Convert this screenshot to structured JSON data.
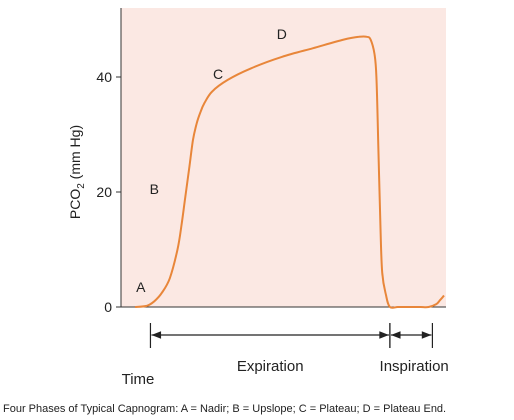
{
  "chart_data": {
    "type": "line",
    "title": "",
    "xlabel": "Time",
    "ylabel_text": "PCO",
    "ylabel_sub": "2",
    "ylabel_unit": " (mm Hg)",
    "ylim": [
      0,
      52
    ],
    "yticks": [
      0,
      20,
      40
    ],
    "grid": false,
    "colors": {
      "plot_background": "#fbe8e3",
      "line": "#e8863a",
      "axes": "#333333"
    },
    "series": [
      {
        "x": [
          0,
          3,
          5,
          7,
          9,
          11,
          12,
          13,
          14,
          15,
          16,
          17,
          18,
          20,
          24,
          30,
          38,
          46,
          54,
          58,
          60,
          61,
          62,
          62.5,
          63,
          63.5,
          64,
          65,
          66,
          68,
          70,
          72,
          74,
          76,
          78,
          79,
          80
        ],
        "y": [
          0,
          0.2,
          1,
          2.5,
          5,
          10,
          14,
          19,
          24,
          29,
          32,
          34,
          35.5,
          37.5,
          39.5,
          41.5,
          43.5,
          45,
          46.5,
          47,
          47,
          46.5,
          44,
          40,
          28,
          15,
          6,
          2,
          0,
          0,
          0,
          0,
          0,
          0,
          0.5,
          1.2,
          2
        ]
      }
    ],
    "annotations": [
      {
        "label": "A",
        "x": 1.5,
        "y": 3.5
      },
      {
        "label": "B",
        "x": 5,
        "y": 20.5
      },
      {
        "label": "C",
        "x": 21.5,
        "y": 40.5
      },
      {
        "label": "D",
        "x": 38,
        "y": 47.5
      }
    ],
    "phases": [
      {
        "label": "Expiration",
        "x_start": 4,
        "x_end": 66
      },
      {
        "label": "Inspiration",
        "x_start": 66,
        "x_end": 77
      }
    ]
  },
  "caption": "Four Phases of Typical Capnogram: A = Nadir; B = Upslope; C = Plateau; D = Plateau End."
}
